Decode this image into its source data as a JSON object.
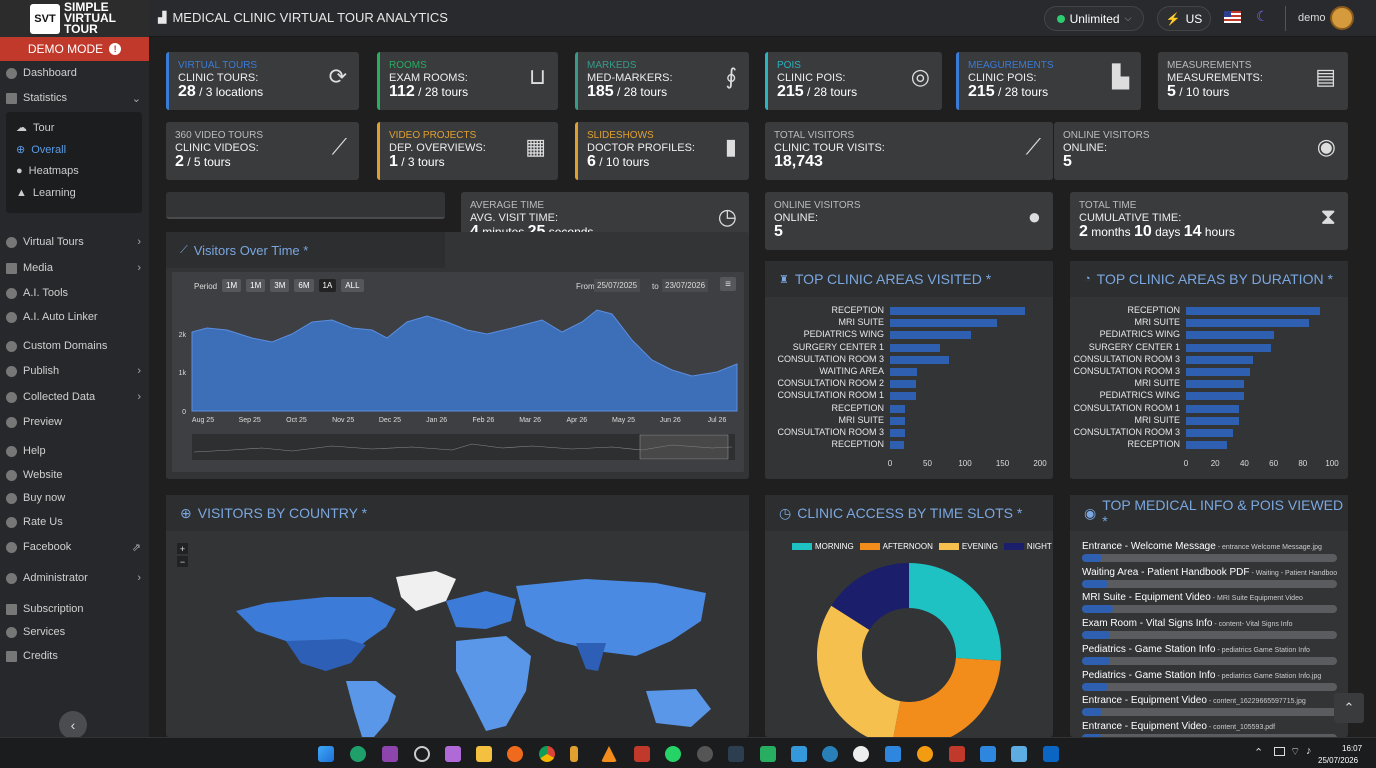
{
  "topbar": {
    "logo_badge": "SVT",
    "logo_name_1": "SIMPLE",
    "logo_name_2": "VIRTUAL",
    "logo_name_3": "TOUR",
    "title": "MEDICAL CLINIC VIRTUAL TOUR ANALYTICS",
    "plan": "Unlimited",
    "lang": "US",
    "user": "demo"
  },
  "sidebar": {
    "demo_mode": "DEMO MODE",
    "items": [
      {
        "label": "Dashboard"
      },
      {
        "label": "Statistics"
      },
      {
        "label": "Virtual Tours"
      },
      {
        "label": "Media"
      },
      {
        "label": "A.I. Tools"
      },
      {
        "label": "A.I. Auto Linker"
      },
      {
        "label": "Custom Domains"
      },
      {
        "label": "Publish"
      },
      {
        "label": "Collected Data"
      },
      {
        "label": "Preview"
      },
      {
        "label": "Help"
      },
      {
        "label": "Website"
      },
      {
        "label": "Buy now"
      },
      {
        "label": "Rate Us"
      },
      {
        "label": "Facebook"
      },
      {
        "label": "Administrator"
      },
      {
        "label": "Subscription"
      },
      {
        "label": "Services"
      },
      {
        "label": "Credits"
      }
    ],
    "sub": [
      {
        "label": "Tour"
      },
      {
        "label": "Overall"
      },
      {
        "label": "Heatmaps"
      },
      {
        "label": "Learning"
      }
    ]
  },
  "cards": [
    {
      "title": "VIRTUAL TOURS",
      "sub": "CLINIC TOURS:",
      "value": "28",
      "rest": " / 3 locations",
      "accent": "#3a7bd5"
    },
    {
      "title": "ROOMS",
      "sub": "EXAM ROOMS:",
      "value": "112",
      "rest": " / 28 tours",
      "accent": "#27ae60"
    },
    {
      "title": "MARKEDS",
      "sub": "MED-MARKERS:",
      "value": "185",
      "rest": " / 28 tours",
      "accent": "#3a9a8a"
    },
    {
      "title": "POIS",
      "sub": "CLINIC POIS:",
      "value": "215",
      "rest": " / 28 tours",
      "accent": "#2bb3c0"
    },
    {
      "title": "MEAGUREMENTS",
      "sub": "CLINIC POIS:",
      "value": "215",
      "rest": " / 28 tours",
      "accent": "#3a7bd5"
    },
    {
      "title": "MEASUREMENTS",
      "sub": "MEASUREMENTS:",
      "value": "5",
      "rest": " / 10 tours",
      "accent": ""
    },
    {
      "title": "360 VIDEO TOURS",
      "sub": "CLINIC VIDEOS:",
      "value": "2",
      "rest": " / 5 tours",
      "accent": ""
    },
    {
      "title": "VIDEO PROJECTS",
      "sub": "DEP. OVERVIEWS:",
      "value": "1",
      "rest": " / 3 tours",
      "accent": "#e0a030"
    },
    {
      "title": "SLIDESHOWS",
      "sub": "DOCTOR PROFILES:",
      "value": "6",
      "rest": " / 10 tours",
      "accent": "#e0a030"
    },
    {
      "title": "TOTAL VISITORS",
      "sub": "CLINIC TOUR VISITS:",
      "value": "18,743",
      "rest": "",
      "accent": ""
    },
    {
      "title": "ONLINE VISITORS",
      "sub": "ONLINE:",
      "value": "5",
      "rest": "",
      "accent": ""
    },
    {
      "title": "AVERAGE TIME",
      "sub": "AVG. VISIT TIME:",
      "value": "4",
      "rest": " minutes ",
      "value2": "25",
      "rest2": " seconds",
      "accent": ""
    },
    {
      "title": "ONLINE VISITORS",
      "sub": "ONLINE:",
      "value": "5",
      "rest": "",
      "accent": ""
    },
    {
      "title": "TOTAL TIME",
      "sub": "CUMULATIVE TIME:",
      "value": "2",
      "rest": " months ",
      "value2": "10",
      "rest2": " days ",
      "value3": "14",
      "rest3": " hours",
      "accent": ""
    }
  ],
  "visitors_panel": {
    "title": "Visitors Over Time *",
    "period_label": "Period",
    "periods": [
      "1M",
      "1M",
      "3M",
      "6M",
      "1A",
      "ALL"
    ],
    "from_label": "From",
    "from": "25/07/2025",
    "to_label": "to",
    "to": "23/07/2026",
    "yticks": [
      "2k",
      "1k",
      "0"
    ],
    "xticks": [
      "Aug 25",
      "Sep 25",
      "Oct 25",
      "Nov 25",
      "Dec 25",
      "Jan 26",
      "Feb 26",
      "Mar 26",
      "Apr 26",
      "May 25",
      "Jun 26",
      "Jul 26"
    ]
  },
  "areas_panel": {
    "title": "TOP CLINIC AREAS VISITED *",
    "labels": [
      "RECEPTION",
      "MRI SUITE",
      "PEDIATRICS WING",
      "SURGERY CENTER 1",
      "CONSULTATION ROOM 3",
      "WAITING AREA",
      "CONSULTATION ROOM 2",
      "CONSULTATION ROOM 1",
      "RECEPTION",
      "MRI SUITE",
      "CONSULTATION ROOM 3",
      "RECEPTION"
    ],
    "values": [
      180,
      142,
      108,
      66,
      78,
      36,
      34,
      34,
      20,
      20,
      20,
      18
    ],
    "ticks": [
      "0",
      "50",
      "100",
      "150",
      "200"
    ],
    "max": 200
  },
  "duration_panel": {
    "title": "TOP CLINIC AREAS BY DURATION *",
    "labels": [
      "RECEPTION",
      "MRI SUITE",
      "PEDIATRICS WING",
      "SURGERY CENTER 1",
      "CONSULTATION ROOM 3",
      "CONSULTATION ROOM 3",
      "MRI SUITE",
      "PEDIATRICS WING",
      "CONSULTATION ROOM 1",
      "MRI SUITE",
      "CONSULTATION ROOM 3",
      "RECEPTION"
    ],
    "values": [
      92,
      84,
      60,
      58,
      46,
      44,
      40,
      40,
      36,
      36,
      32,
      28
    ],
    "ticks": [
      "0",
      "20",
      "40",
      "60",
      "80",
      "100"
    ],
    "max": 100
  },
  "country_panel": {
    "title": "VISITORS BY COUNTRY *"
  },
  "timeslots_panel": {
    "title": "CLINIC ACCESS BY TIME SLOTS *",
    "legend": [
      {
        "name": "MORNING",
        "color": "#1fc2c2",
        "value": 26
      },
      {
        "name": "AFTERNOON",
        "color": "#f28c1b",
        "value": 27
      },
      {
        "name": "EVENING",
        "color": "#f6c04e",
        "value": 31
      },
      {
        "name": "NIGHT",
        "color": "#1b1f6b",
        "value": 16
      }
    ]
  },
  "medinfo_panel": {
    "title": "TOP MEDICAL INFO & POIS VIEWED *",
    "items": [
      {
        "main": "Entrance - Welcome Message",
        "detail": " - entrance Welcome Message.jpg",
        "pct": 0.08
      },
      {
        "main": "Waiting Area - Patient Handbook PDF",
        "detail": " - Waiting - Patient Handbook PDF",
        "pct": 0.1
      },
      {
        "main": "MRI Suite - Equipment Video",
        "detail": " - MRI Suite Equipment Video",
        "pct": 0.12
      },
      {
        "main": "Exam Room - Vital Signs Info",
        "detail": " - content- Vital Signs Info",
        "pct": 0.11
      },
      {
        "main": "Pediatrics - Game Station Info",
        "detail": " - pediatrics Game Station Info",
        "pct": 0.11
      },
      {
        "main": "Pediatrics - Game Station Info",
        "detail": " - pediatrics Game Station Info.jpg",
        "pct": 0.1
      },
      {
        "main": "Entrance - Equipment Video",
        "detail": " - content_16229665597715.jpg",
        "pct": 0.08
      },
      {
        "main": "Entrance - Equipment Video",
        "detail": " - content_105593.pdf",
        "pct": 0.08
      }
    ]
  },
  "taskbar": {
    "time": "16:07",
    "date": "25/07/2026"
  }
}
